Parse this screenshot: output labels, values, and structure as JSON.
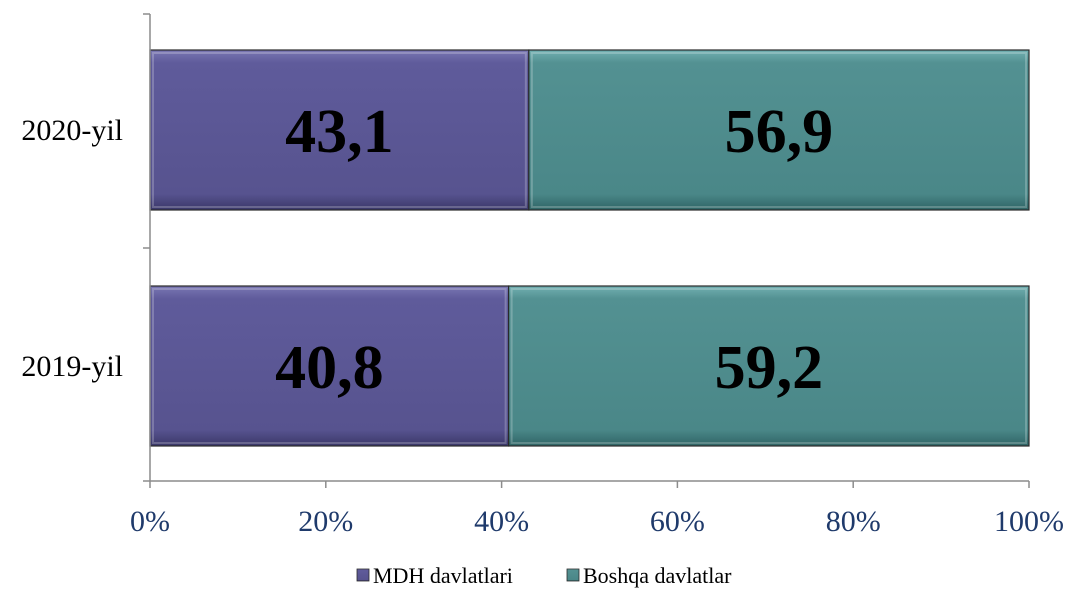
{
  "chart_data": {
    "type": "bar",
    "orientation": "horizontal",
    "stacking": "percent",
    "categories": [
      "2020-yil",
      "2019-yil"
    ],
    "series": [
      {
        "name": "MDH davlatlari",
        "values": [
          43.1,
          40.8
        ],
        "labels": [
          "43,1",
          "40,8"
        ],
        "color": "#5b5796"
      },
      {
        "name": "Boshqa davlatlar",
        "values": [
          56.9,
          59.2
        ],
        "labels": [
          "56,9",
          "59,2"
        ],
        "color": "#4e8c8d"
      }
    ],
    "x_ticks": [
      "0%",
      "20%",
      "40%",
      "60%",
      "80%",
      "100%"
    ],
    "xlim": [
      0,
      100
    ],
    "grid": false,
    "legend_position": "bottom",
    "tick_label_color": "#1f3a6b",
    "axis_color": "#8c8c8c"
  }
}
